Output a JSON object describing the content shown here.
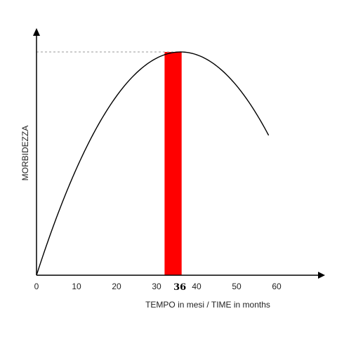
{
  "chart_data": {
    "type": "line",
    "title": "",
    "xlabel": "TEMPO in mesi  / TIME in months",
    "ylabel": "MORBIDEZZA",
    "xlim": [
      0,
      70
    ],
    "ylim": [
      0,
      1.08
    ],
    "x_ticks": [
      0,
      10,
      20,
      30,
      40,
      50,
      60
    ],
    "highlight_tick": 36,
    "curve_peak": {
      "x": 36,
      "y": 1.0
    },
    "curve_end_x": 58,
    "highlight_band": {
      "x_from": 32,
      "x_to": 36,
      "color": "#ff0000"
    },
    "reference_line": {
      "y": 1.0,
      "style": "dashed"
    },
    "grid": false,
    "colors": {
      "curve": "#000000",
      "axis": "#000000",
      "band": "#ff0000",
      "dashed": "#999999"
    }
  }
}
